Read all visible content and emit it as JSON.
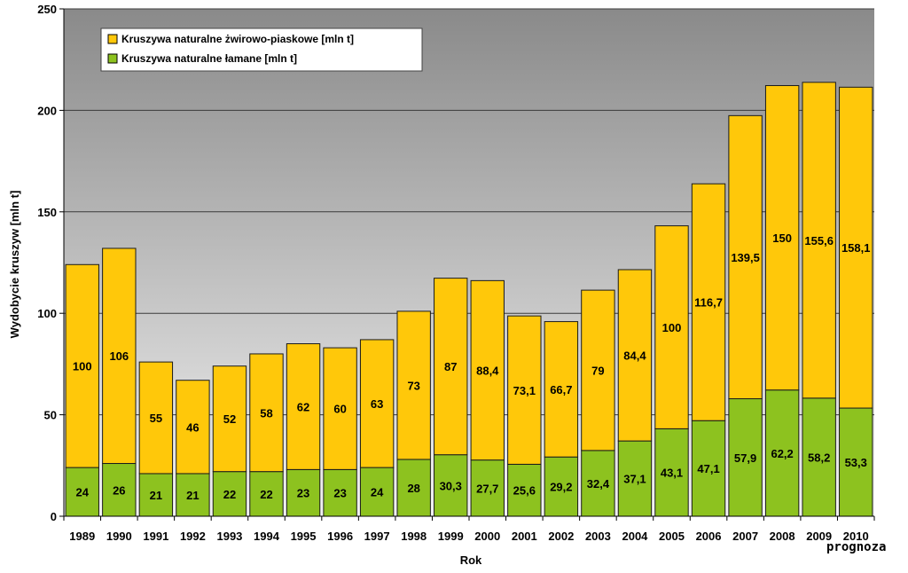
{
  "chart_data": {
    "type": "bar",
    "stacked": true,
    "categories": [
      "1989",
      "1990",
      "1991",
      "1992",
      "1993",
      "1994",
      "1995",
      "1996",
      "1997",
      "1998",
      "1999",
      "2000",
      "2001",
      "2002",
      "2003",
      "2004",
      "2005",
      "2006",
      "2007",
      "2008",
      "2009",
      "2010"
    ],
    "series": [
      {
        "name": "Kruszywa naturalne łamane [mln t]",
        "color": "#8dc21f",
        "values": [
          24,
          26,
          21,
          21,
          22,
          22,
          23,
          23,
          24,
          28,
          30.3,
          27.7,
          25.6,
          29.2,
          32.4,
          37.1,
          43.1,
          47.1,
          57.9,
          62.2,
          58.2,
          53.3
        ],
        "labels": [
          "24",
          "26",
          "21",
          "21",
          "22",
          "22",
          "23",
          "23",
          "24",
          "28",
          "30,3",
          "27,7",
          "25,6",
          "29,2",
          "32,4",
          "37,1",
          "43,1",
          "47,1",
          "57,9",
          "62,2",
          "58,2",
          "53,3"
        ]
      },
      {
        "name": "Kruszywa naturalne żwirowo-piaskowe [mln t]",
        "color": "#ffc80a",
        "values": [
          100,
          106,
          55,
          46,
          52,
          58,
          62,
          60,
          63,
          73,
          87,
          88.4,
          73.1,
          66.7,
          79,
          84.4,
          100,
          116.7,
          139.5,
          150,
          155.6,
          158.1
        ],
        "labels": [
          "100",
          "106",
          "55",
          "46",
          "52",
          "58",
          "62",
          "60",
          "63",
          "73",
          "87",
          "88,4",
          "73,1",
          "66,7",
          "79",
          "84,4",
          "100",
          "116,7",
          "139,5",
          "150",
          "155,6",
          "158,1"
        ]
      }
    ],
    "xlabel": "Rok",
    "ylabel": "Wydobycie kruszyw [mln t]",
    "ylim": [
      0,
      250
    ],
    "yticks": [
      0,
      50,
      100,
      150,
      200,
      250
    ],
    "grid": true,
    "legend_position": "top-left",
    "background_gradient": [
      "#8a8a8a",
      "#f2f2f2"
    ]
  },
  "annotation": "prognoza"
}
